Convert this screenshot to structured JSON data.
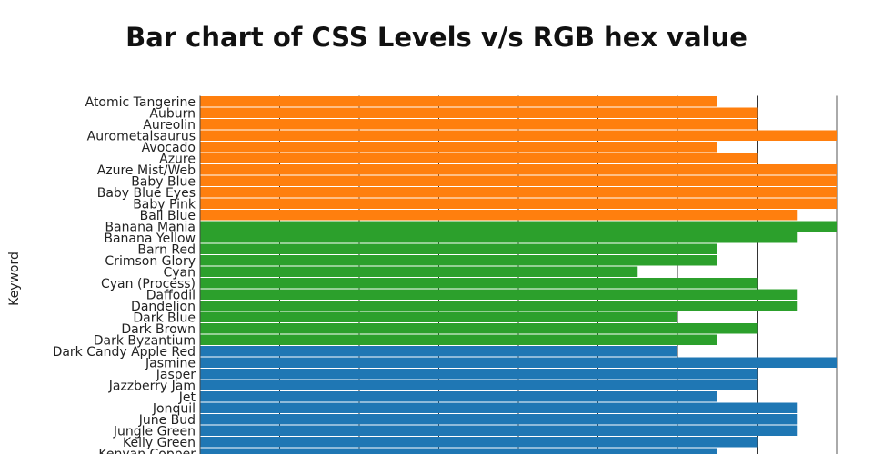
{
  "chart_data": {
    "type": "bar",
    "orientation": "horizontal",
    "title": "Bar chart of CSS Levels v/s RGB hex value",
    "xlabel": "",
    "ylabel": "Keyword",
    "xlim": [
      0,
      16
    ],
    "grid": true,
    "categories": [
      "Atomic Tangerine",
      "Auburn",
      "Aureolin",
      "Aurometalsaurus",
      "Avocado",
      "Azure",
      "Azure Mist/Web",
      "Baby Blue",
      "Baby Blue Eyes",
      "Baby Pink",
      "Ball Blue",
      "Banana Mania",
      "Banana Yellow",
      "Barn Red",
      "Crimson Glory",
      "Cyan",
      "Cyan (Process)",
      "Daffodil",
      "Dandelion",
      "Dark Blue",
      "Dark Brown",
      "Dark Byzantium",
      "Dark Candy Apple Red",
      "Jasmine",
      "Jasper",
      "Jazzberry Jam",
      "Jet",
      "Jonquil",
      "June Bud",
      "Jungle Green",
      "Kelly Green",
      "Kenyan Copper"
    ],
    "values": [
      13,
      14,
      14,
      16,
      13,
      14,
      16,
      16,
      16,
      16,
      15,
      16,
      15,
      13,
      13,
      11,
      14,
      15,
      15,
      12,
      14,
      13,
      12,
      16,
      14,
      14,
      13,
      15,
      15,
      15,
      14,
      13
    ],
    "groups": [
      0,
      0,
      0,
      0,
      0,
      0,
      0,
      0,
      0,
      0,
      0,
      1,
      1,
      1,
      1,
      1,
      1,
      1,
      1,
      1,
      1,
      1,
      2,
      2,
      2,
      2,
      2,
      2,
      2,
      2,
      2,
      2
    ],
    "group_colors": [
      "#ff7f0e",
      "#2ca02c",
      "#1f77b4"
    ]
  }
}
